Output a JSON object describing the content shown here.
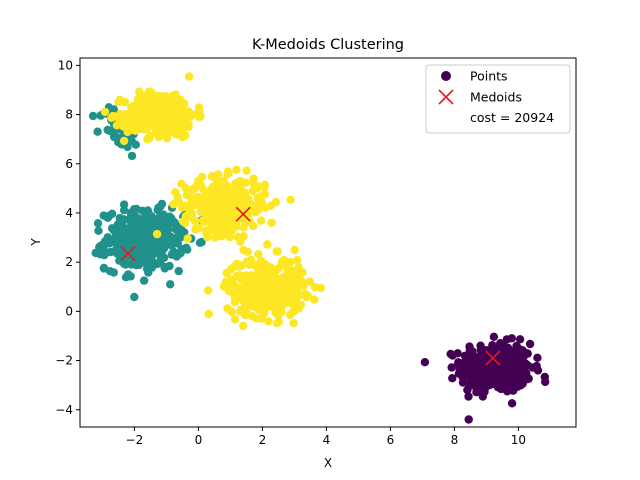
{
  "chart_data": {
    "type": "scatter",
    "title": "K-Medoids Clustering",
    "xlabel": "X",
    "ylabel": "Y",
    "xlim": [
      -3.7,
      11.8
    ],
    "ylim": [
      -4.7,
      10.3
    ],
    "xticks": [
      -2,
      0,
      2,
      4,
      6,
      8,
      10
    ],
    "yticks": [
      -4,
      -2,
      0,
      2,
      4,
      6,
      8,
      10
    ],
    "grid": false,
    "legend": {
      "placement": "top-right",
      "entries": [
        "Points",
        "Medoids",
        "cost = 20924"
      ]
    },
    "colors": {
      "cluster_0": "#440154",
      "cluster_1": "#21918c",
      "cluster_2": "#fde725",
      "medoid": "#e41a1c"
    },
    "clusters": [
      {
        "id": 0,
        "color": "cluster_0",
        "center": [
          9.3,
          -2.3
        ],
        "spread": [
          0.55,
          0.5
        ],
        "count": 420
      },
      {
        "id": 1,
        "color": "cluster_1",
        "center": [
          -1.7,
          2.9
        ],
        "spread": [
          0.6,
          0.6
        ],
        "count": 380
      },
      {
        "id": 1,
        "color": "cluster_1",
        "center": [
          -2.4,
          7.5
        ],
        "spread": [
          0.35,
          0.45
        ],
        "count": 60
      },
      {
        "id": 2,
        "color": "cluster_2",
        "center": [
          -1.2,
          8.0
        ],
        "spread": [
          0.55,
          0.45
        ],
        "count": 320
      },
      {
        "id": 2,
        "color": "cluster_2",
        "center": [
          0.8,
          4.3
        ],
        "spread": [
          0.65,
          0.55
        ],
        "count": 320
      },
      {
        "id": 2,
        "color": "cluster_2",
        "center": [
          2.1,
          1.0
        ],
        "spread": [
          0.6,
          0.6
        ],
        "count": 340
      }
    ],
    "medoids": [
      {
        "x": 9.2,
        "y": -1.9
      },
      {
        "x": -2.2,
        "y": 2.35
      },
      {
        "x": 1.4,
        "y": 3.95
      }
    ],
    "cost": 20924
  }
}
